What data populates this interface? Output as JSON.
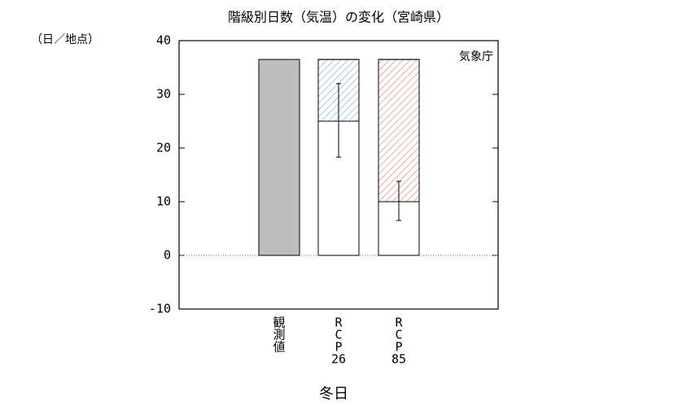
{
  "chart_data": {
    "type": "bar",
    "title": "階級別日数（気温）の変化（宮崎県）",
    "y_label": "（日／地点）",
    "x_label": "冬日",
    "annotation": "気象庁",
    "categories": [
      [
        "観",
        "測",
        "値"
      ],
      [
        "R",
        "C",
        "P",
        "26"
      ],
      [
        "R",
        "C",
        "P",
        "85"
      ]
    ],
    "series": [
      {
        "color": "#bebebe",
        "values": [
          36.5,
          null,
          null
        ]
      },
      {
        "color": "#ffffff",
        "values": [
          null,
          25,
          10
        ],
        "error_minus": [
          null,
          6.7,
          3.5
        ],
        "error_plus": [
          null,
          7,
          3.8
        ]
      },
      {
        "colors": [
          null,
          "#6fa8cc",
          "#d8705f"
        ],
        "hatch": true,
        "values": [
          null,
          11.5,
          26.5
        ]
      }
    ],
    "ylim": [
      -10,
      40
    ],
    "yticks": [
      -10,
      0,
      10,
      20,
      30,
      40
    ],
    "zero_line": true
  }
}
